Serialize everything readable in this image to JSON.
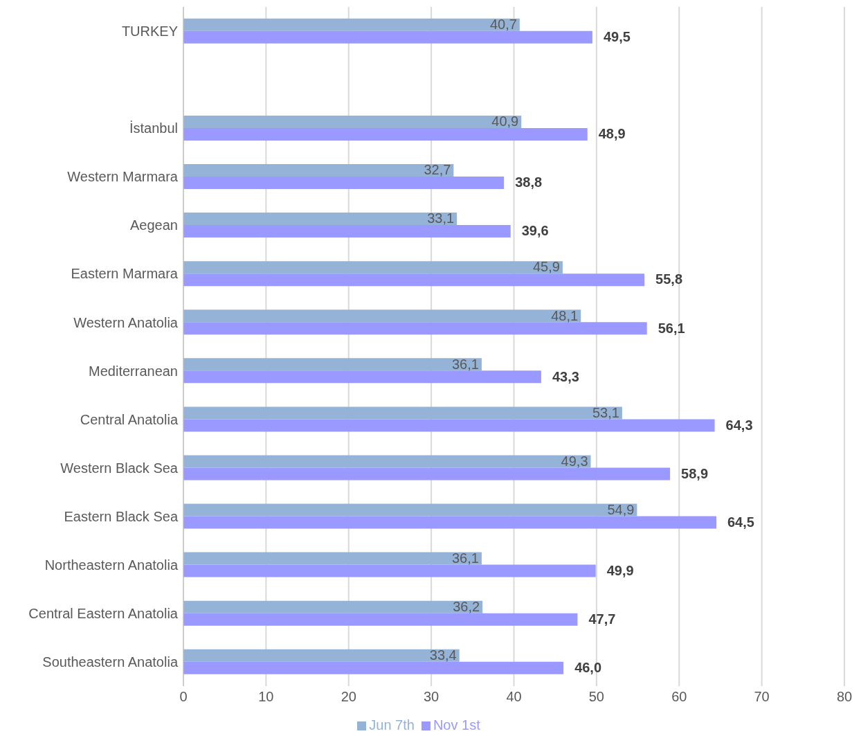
{
  "chart_data": {
    "type": "bar",
    "orientation": "horizontal",
    "categories": [
      "TURKEY",
      null,
      "İstanbul",
      "Western Marmara",
      "Aegean",
      "Eastern Marmara",
      "Western Anatolia",
      "Mediterranean",
      "Central Anatolia",
      "Western Black Sea",
      "Eastern Black Sea",
      "Northeastern Anatolia",
      "Central Eastern Anatolia",
      "Southeastern Anatolia"
    ],
    "series": [
      {
        "name": "Jun 7th",
        "color": "#95b3d7",
        "values": [
          40.7,
          null,
          40.9,
          32.7,
          33.1,
          45.9,
          48.1,
          36.1,
          53.1,
          49.3,
          54.9,
          36.1,
          36.2,
          33.4
        ],
        "value_labels": [
          "40,7",
          null,
          "40,9",
          "32,7",
          "33,1",
          "45,9",
          "48,1",
          "36,1",
          "53,1",
          "49,3",
          "54,9",
          "36,1",
          "36,2",
          "33,4"
        ]
      },
      {
        "name": "Nov 1st",
        "color": "#9999ff",
        "values": [
          49.5,
          null,
          48.9,
          38.8,
          39.6,
          55.8,
          56.1,
          43.3,
          64.3,
          58.9,
          64.5,
          49.9,
          47.7,
          46.0
        ],
        "value_labels": [
          "49,5",
          null,
          "48,9",
          "38,8",
          "39,6",
          "55,8",
          "56,1",
          "43,3",
          "64,3",
          "58,9",
          "64,5",
          "49,9",
          "47,7",
          "46,0"
        ]
      }
    ],
    "xlim": [
      0,
      80
    ],
    "xticks": [
      0,
      10,
      20,
      30,
      40,
      50,
      60,
      70,
      80
    ],
    "grid": "x",
    "legend": "bottom"
  }
}
